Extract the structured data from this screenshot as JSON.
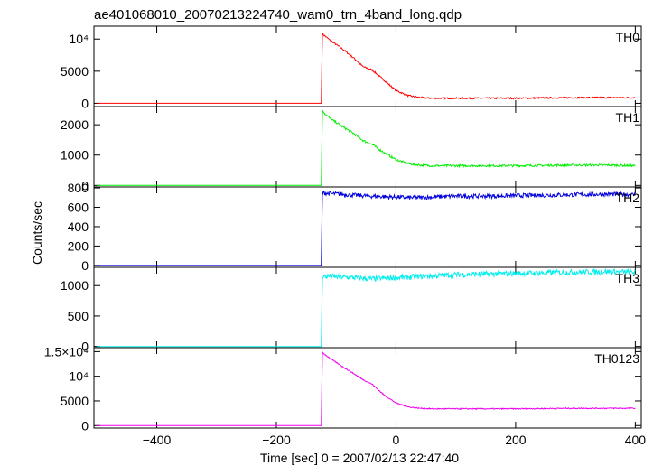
{
  "chart_data": {
    "type": "line",
    "title": "ae401068010_20070213224740_wam0_trn_4band_long.qdp",
    "xlabel": "Time [sec] 0 = 2007/02/13 22:47:40",
    "ylabel": "Counts/sec",
    "xlim": [
      -505,
      410
    ],
    "x_ticks": [
      {
        "value": -400,
        "label": "−400"
      },
      {
        "value": -200,
        "label": "−200"
      },
      {
        "value": 0,
        "label": "0"
      },
      {
        "value": 200,
        "label": "200"
      },
      {
        "value": 400,
        "label": "400"
      }
    ],
    "x": [
      -500,
      -130,
      -125,
      -123,
      -110,
      -90,
      -70,
      -55,
      -40,
      -20,
      0,
      20,
      40,
      60,
      80,
      100,
      150,
      200,
      250,
      300,
      350,
      400
    ],
    "panels": [
      {
        "name": "TH0",
        "color": "#ff0000",
        "ylim": [
          -500,
          12000
        ],
        "y_ticks": [
          {
            "value": 0,
            "label": "0"
          },
          {
            "value": 5000,
            "label": "5000"
          },
          {
            "value": 10000,
            "label": "10⁴"
          }
        ],
        "noise": 120,
        "values": [
          0,
          0,
          0,
          10800,
          9800,
          8500,
          7000,
          5700,
          5200,
          3600,
          2000,
          1200,
          900,
          800,
          800,
          800,
          800,
          800,
          850,
          900,
          900,
          900
        ]
      },
      {
        "name": "TH1",
        "color": "#00ee00",
        "ylim": [
          -50,
          2600
        ],
        "y_ticks": [
          {
            "value": 0,
            "label": "0"
          },
          {
            "value": 1000,
            "label": "1000"
          },
          {
            "value": 2000,
            "label": "2000"
          }
        ],
        "noise": 35,
        "values": [
          0,
          0,
          0,
          2450,
          2200,
          1950,
          1700,
          1480,
          1350,
          1080,
          850,
          720,
          670,
          650,
          650,
          650,
          650,
          650,
          660,
          670,
          670,
          650
        ]
      },
      {
        "name": "TH2",
        "color": "#0000dd",
        "ylim": [
          -20,
          810
        ],
        "y_ticks": [
          {
            "value": 0,
            "label": "0"
          },
          {
            "value": 200,
            "label": "200"
          },
          {
            "value": 400,
            "label": "400"
          },
          {
            "value": 600,
            "label": "600"
          },
          {
            "value": 800,
            "label": "800"
          }
        ],
        "noise": 22,
        "values": [
          0,
          0,
          0,
          750,
          740,
          735,
          725,
          720,
          715,
          710,
          705,
          700,
          700,
          705,
          710,
          715,
          715,
          720,
          725,
          730,
          735,
          730
        ]
      },
      {
        "name": "TH3",
        "color": "#00eeee",
        "ylim": [
          -20,
          1300
        ],
        "y_ticks": [
          {
            "value": 0,
            "label": "0"
          },
          {
            "value": 500,
            "label": "500"
          },
          {
            "value": 1000,
            "label": "1000"
          }
        ],
        "noise": 45,
        "values": [
          0,
          0,
          0,
          1150,
          1150,
          1140,
          1130,
          1120,
          1110,
          1120,
          1130,
          1140,
          1150,
          1160,
          1170,
          1180,
          1190,
          1200,
          1210,
          1220,
          1230,
          1220
        ]
      },
      {
        "name": "TH0123",
        "color": "#ee00ee",
        "ylim": [
          -500,
          15800
        ],
        "y_ticks": [
          {
            "value": 0,
            "label": "0"
          },
          {
            "value": 5000,
            "label": "5000"
          },
          {
            "value": 10000,
            "label": "10⁴"
          },
          {
            "value": 15000,
            "label": "1.5×10⁴"
          }
        ],
        "noise": 110,
        "values": [
          0,
          0,
          0,
          14800,
          13600,
          12000,
          10500,
          9300,
          8400,
          6200,
          4600,
          3800,
          3500,
          3400,
          3400,
          3400,
          3400,
          3400,
          3450,
          3500,
          3500,
          3500
        ]
      }
    ]
  }
}
